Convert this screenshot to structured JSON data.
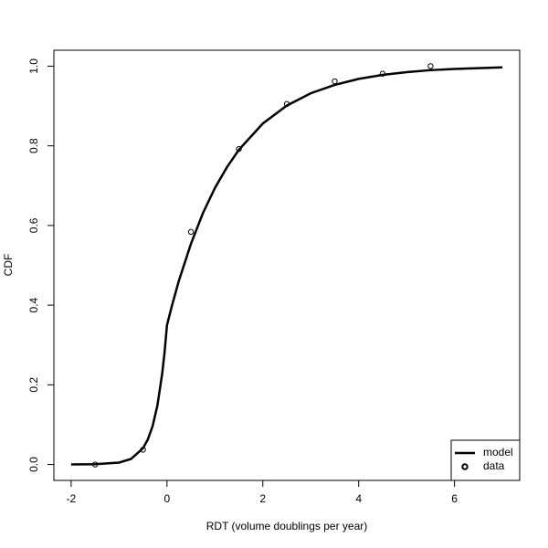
{
  "chart_data": {
    "type": "line",
    "x_label": "RDT (volume doublings per year)",
    "y_label": "CDF",
    "xlim": [
      -2.36,
      7.36
    ],
    "ylim": [
      -0.04,
      1.04
    ],
    "xticks": [
      -2,
      0,
      2,
      4,
      6
    ],
    "yticks": [
      {
        "value": 0,
        "label": "0.0"
      },
      0.2,
      0.4,
      0.6,
      0.8,
      {
        "value": 1,
        "label": "1.0"
      }
    ],
    "legend": "bottomright",
    "series": [
      {
        "name": "model",
        "color": "#000000",
        "mode": "line",
        "x": [
          -2,
          -1.5,
          -1,
          -0.75,
          -0.5,
          -0.4,
          -0.3,
          -0.2,
          -0.1,
          -0.05,
          0,
          0.1,
          0.25,
          0.5,
          0.75,
          1,
          1.25,
          1.5,
          2,
          2.5,
          3,
          3.5,
          4,
          4.5,
          5,
          5.5,
          6,
          6.5,
          7
        ],
        "values": [
          0.0001,
          0.0006,
          0.0048,
          0.0139,
          0.0408,
          0.0627,
          0.0963,
          0.148,
          0.228,
          0.282,
          0.35,
          0.397,
          0.462,
          0.554,
          0.631,
          0.694,
          0.746,
          0.79,
          0.856,
          0.901,
          0.932,
          0.953,
          0.968,
          0.978,
          0.985,
          0.99,
          0.993,
          0.995,
          0.997
        ]
      },
      {
        "name": "data",
        "color": "#000000",
        "mode": "points",
        "x": [
          -1.5,
          -0.5,
          0.5,
          1.5,
          2.5,
          3.5,
          4.5,
          5.5
        ],
        "values": [
          0,
          0.037,
          0.584,
          0.792,
          0.905,
          0.962,
          0.981,
          1.0
        ]
      }
    ]
  }
}
